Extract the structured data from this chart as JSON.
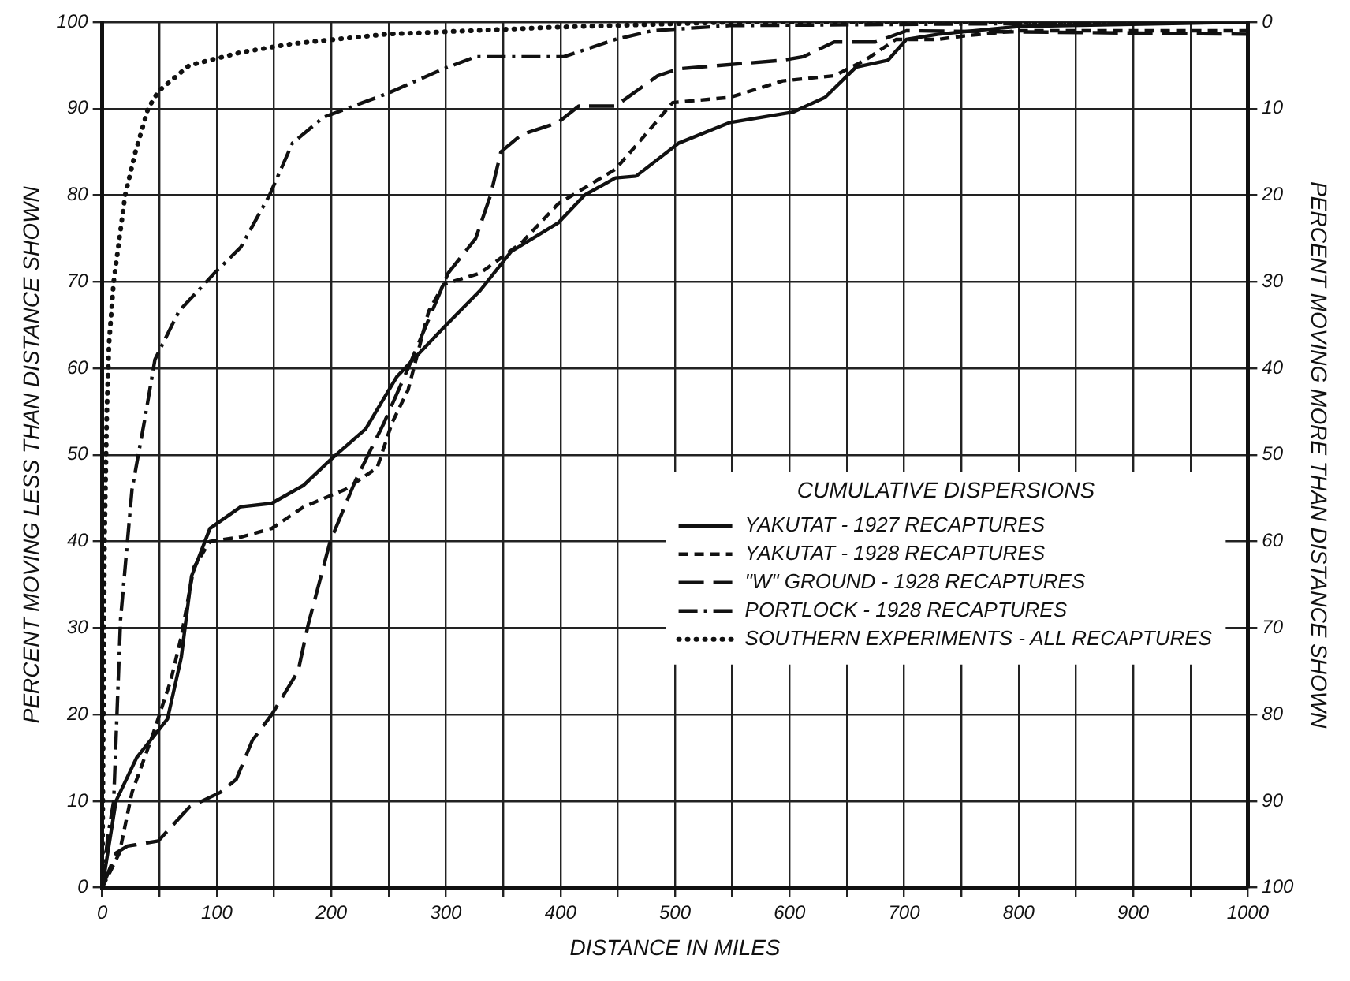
{
  "chart_data": {
    "type": "line",
    "xlabel": "DISTANCE IN MILES",
    "ylabel": "PERCENT MOVING LESS THAN DISTANCE SHOWN",
    "y2label": "PERCENT MOVING MORE THAN DISTANCE SHOWN",
    "legend_title": "CUMULATIVE DISPERSIONS",
    "legend": "right",
    "grid": true,
    "marker": "none",
    "xlim": [
      0,
      1000
    ],
    "xticks": [
      0,
      {
        "value": 50,
        "label": null
      },
      100,
      {
        "value": 150,
        "label": null
      },
      200,
      {
        "value": 250,
        "label": null
      },
      300,
      {
        "value": 350,
        "label": null
      },
      400,
      {
        "value": 450,
        "label": null
      },
      500,
      {
        "value": 550,
        "label": null
      },
      600,
      {
        "value": 650,
        "label": null
      },
      700,
      {
        "value": 750,
        "label": null
      },
      800,
      {
        "value": 850,
        "label": null
      },
      900,
      {
        "value": 950,
        "label": null
      },
      1000
    ],
    "ylim": [
      0,
      100
    ],
    "yticks": [
      0,
      10,
      20,
      30,
      40,
      50,
      60,
      70,
      80,
      90,
      100
    ],
    "y2lim": [
      100,
      0
    ],
    "y2ticks": [
      0,
      10,
      20,
      30,
      40,
      50,
      60,
      70,
      80,
      90,
      100
    ],
    "series": [
      {
        "name": "YAKUTAT - 1927 RECAPTURES",
        "color": "#111111",
        "line_style": "solid",
        "x": [
          0,
          12,
          30,
          57,
          69,
          78,
          94,
          121,
          148,
          176,
          199,
          230,
          257,
          298,
          330,
          357,
          398,
          421,
          448,
          466,
          503,
          548,
          603,
          631,
          658,
          686,
          702,
          730,
          800,
          1000
        ],
        "values": [
          0,
          10,
          15,
          19.5,
          26.6,
          36,
          41.5,
          44,
          44.4,
          46.5,
          49.4,
          53,
          59,
          64.7,
          69,
          73.5,
          76.8,
          80,
          82,
          82.2,
          86,
          88.4,
          89.6,
          91.3,
          94.8,
          95.6,
          98,
          98.6,
          99.5,
          100
        ]
      },
      {
        "name": "YAKUTAT - 1928 RECAPTURES",
        "color": "#111111",
        "line_style": "dashed",
        "x": [
          0,
          15,
          26,
          44,
          60,
          69,
          80,
          94,
          121,
          148,
          176,
          212,
          240,
          253,
          267,
          285,
          298,
          330,
          366,
          398,
          448,
          471,
          498,
          548,
          594,
          639,
          666,
          693,
          730,
          752,
          800,
          1000
        ],
        "values": [
          0,
          4,
          11,
          17.6,
          24,
          29,
          37,
          40,
          40.5,
          41.5,
          44,
          46,
          48.5,
          53.7,
          57.5,
          66.6,
          69.7,
          71,
          74.5,
          79,
          83,
          86.5,
          90.7,
          91.3,
          93.2,
          93.8,
          95.6,
          98,
          98,
          98.4,
          99,
          99
        ]
      },
      {
        "name": "\"W\" GROUND - 1928 RECAPTURES",
        "color": "#111111",
        "line_style": "longdash",
        "x": [
          0,
          12,
          22,
          49,
          76,
          103,
          117,
          131,
          148,
          171,
          180,
          199,
          221,
          246,
          267,
          302,
          326,
          339,
          348,
          366,
          398,
          416,
          448,
          485,
          503,
          594,
          612,
          639,
          675,
          702,
          1000
        ],
        "values": [
          0,
          4,
          4.8,
          5.4,
          9.3,
          11,
          12.5,
          17,
          20,
          25,
          30.5,
          40,
          47,
          53.7,
          60,
          71,
          75,
          80,
          85,
          87,
          88.4,
          90.3,
          90.3,
          93.8,
          94.6,
          95.6,
          96,
          97.7,
          97.7,
          99,
          98.6
        ]
      },
      {
        "name": "PORTLOCK - 1928 RECAPTURES",
        "color": "#111111",
        "line_style": "dashdot",
        "x": [
          0,
          5,
          10,
          16,
          26,
          37,
          46,
          67,
          98,
          121,
          146,
          166,
          193,
          248,
          298,
          326,
          366,
          403,
          448,
          480,
          548,
          1000
        ],
        "values": [
          0,
          6,
          10,
          31,
          46,
          54,
          61,
          66.6,
          71,
          74,
          80,
          86,
          89,
          91.7,
          94.6,
          96,
          96,
          96,
          98,
          99,
          99.6,
          100
        ]
      },
      {
        "name": "SOUTHERN EXPERIMENTS - ALL RECAPTURES",
        "color": "#111111",
        "line_style": "dotted",
        "x": [
          0,
          1,
          2,
          4,
          6,
          10,
          20,
          29,
          40,
          49,
          76,
          121,
          166,
          248,
          394,
          550,
          1000
        ],
        "values": [
          0,
          20,
          40,
          55,
          63,
          70,
          80,
          85,
          90,
          92,
          95,
          96.5,
          97.5,
          98.6,
          99.4,
          100,
          100
        ]
      }
    ]
  }
}
